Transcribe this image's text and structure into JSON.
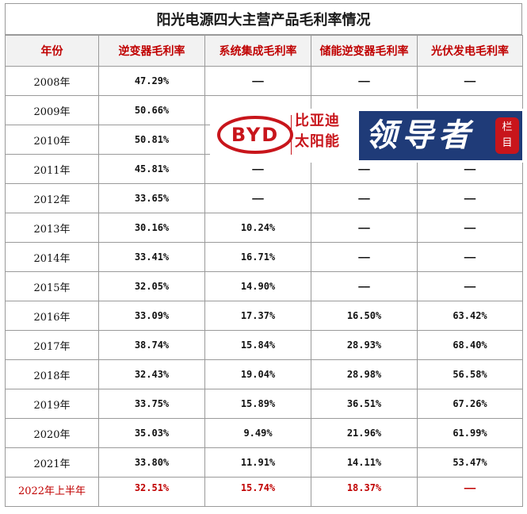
{
  "title": "阳光电源四大主营产品毛利率情况",
  "headers": [
    "年份",
    "逆变器毛利率",
    "系统集成毛利率",
    "储能逆变器毛利率",
    "光伏发电毛利率"
  ],
  "rows": [
    [
      "2008年",
      "47.29%",
      "——",
      "——",
      "——"
    ],
    [
      "2009年",
      "50.66%",
      "",
      "",
      ""
    ],
    [
      "2010年",
      "50.81%",
      "",
      "",
      ""
    ],
    [
      "2011年",
      "45.81%",
      "——",
      "——",
      "——"
    ],
    [
      "2012年",
      "33.65%",
      "——",
      "——",
      "——"
    ],
    [
      "2013年",
      "30.16%",
      "10.24%",
      "——",
      "——"
    ],
    [
      "2014年",
      "33.41%",
      "16.71%",
      "——",
      "——"
    ],
    [
      "2015年",
      "32.05%",
      "14.90%",
      "——",
      "——"
    ],
    [
      "2016年",
      "33.09%",
      "17.37%",
      "16.50%",
      "63.42%"
    ],
    [
      "2017年",
      "38.74%",
      "15.84%",
      "28.93%",
      "68.40%"
    ],
    [
      "2018年",
      "32.43%",
      "19.04%",
      "28.98%",
      "56.58%"
    ],
    [
      "2019年",
      "33.75%",
      "15.89%",
      "36.51%",
      "67.26%"
    ],
    [
      "2020年",
      "35.03%",
      "9.49%",
      "21.96%",
      "61.99%"
    ],
    [
      "2021年",
      "33.80%",
      "11.91%",
      "14.11%",
      "53.47%"
    ],
    [
      "2022年上半年",
      "32.51%",
      "15.74%",
      "18.37%",
      "——"
    ]
  ],
  "highlight_row_index": 14,
  "watermark": {
    "byd_logo_text": "BYD",
    "byd_line1": "比亚迪",
    "byd_line2": "太阳能",
    "leader_text": "领导者",
    "badge_line1": "栏",
    "badge_line2": "目"
  },
  "colors": {
    "header_text": "#c00000",
    "highlight_text": "#c00000",
    "byd_red": "#c8151b",
    "leader_blue": "#1f3b78"
  }
}
